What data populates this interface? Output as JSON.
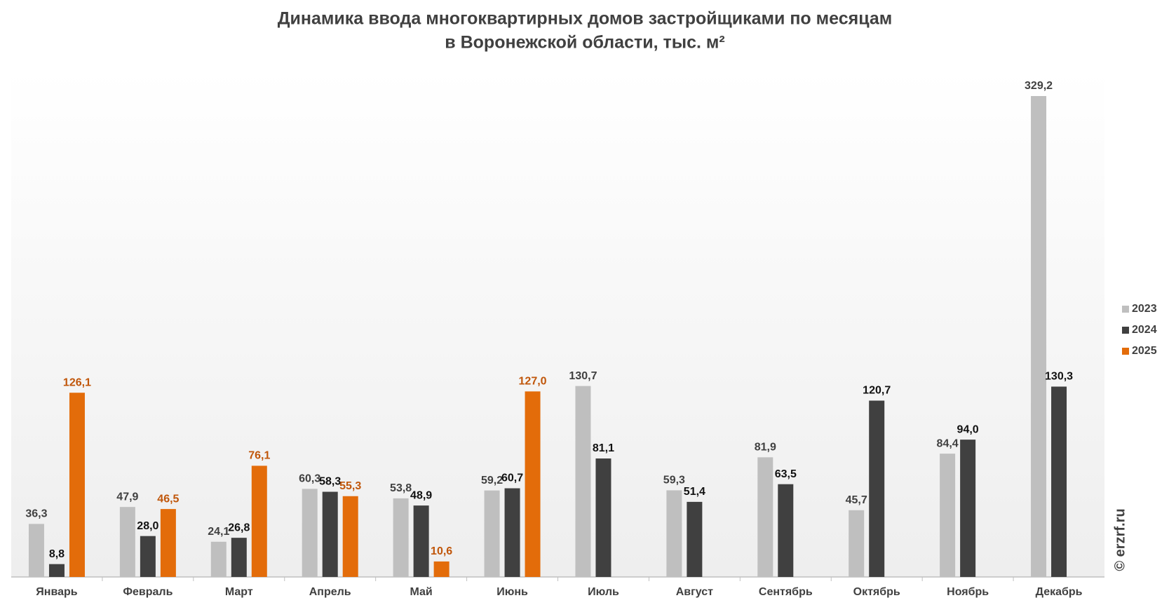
{
  "chart_data": {
    "type": "bar",
    "title": "Динамика ввода многоквартирных домов застройщиками по месяцам",
    "subtitle": "в Воронежской области, тыс. м²",
    "categories": [
      "Январь",
      "Февраль",
      "Март",
      "Апрель",
      "Май",
      "Июнь",
      "Июль",
      "Август",
      "Сентябрь",
      "Октябрь",
      "Ноябрь",
      "Декабрь"
    ],
    "series": [
      {
        "name": "2023",
        "color": "#bfbfbf",
        "values": [
          36.3,
          47.9,
          24.1,
          60.3,
          53.8,
          59.2,
          130.7,
          59.3,
          81.9,
          45.7,
          84.4,
          329.2
        ],
        "value_labels": [
          "36,3",
          "47,9",
          "24,1",
          "60,3",
          "53,8",
          "59,2",
          "130,7",
          "59,3",
          "81,9",
          "45,7",
          "84,4",
          "329,2"
        ]
      },
      {
        "name": "2024",
        "color": "#404040",
        "values": [
          8.8,
          28.0,
          26.8,
          58.3,
          48.9,
          60.7,
          81.1,
          51.4,
          63.5,
          120.7,
          94.0,
          130.3
        ],
        "value_labels": [
          "8,8",
          "28,0",
          "26,8",
          "58,3",
          "48,9",
          "60,7",
          "81,1",
          "51,4",
          "63,5",
          "120,7",
          "94,0",
          "130,3"
        ]
      },
      {
        "name": "2025",
        "color": "#e36c0a",
        "values": [
          126.1,
          46.5,
          76.1,
          55.3,
          10.6,
          127.0,
          null,
          null,
          null,
          null,
          null,
          null
        ],
        "value_labels": [
          "126,1",
          "46,5",
          "76,1",
          "55,3",
          "10,6",
          "127,0",
          null,
          null,
          null,
          null,
          null,
          null
        ]
      }
    ],
    "legend": "right",
    "watermark": "© erzrf.ru"
  }
}
